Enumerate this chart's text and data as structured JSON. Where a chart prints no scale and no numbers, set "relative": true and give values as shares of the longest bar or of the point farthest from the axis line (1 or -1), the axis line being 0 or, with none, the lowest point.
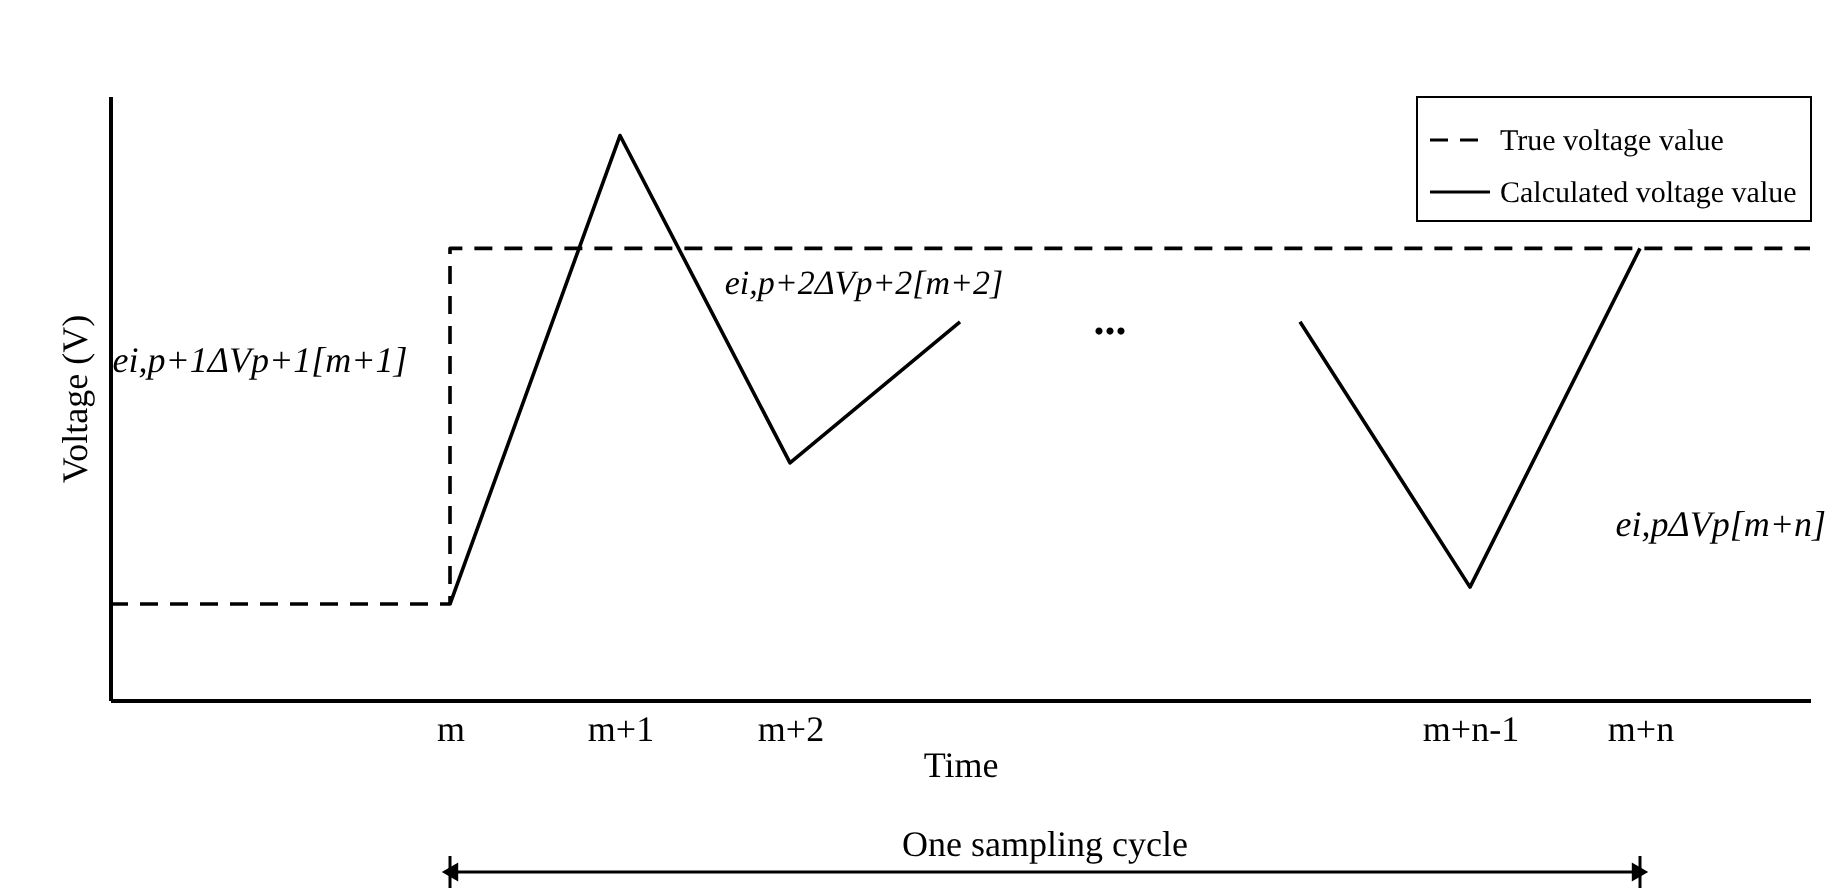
{
  "chart_data": {
    "type": "line",
    "relative": true,
    "xlabel": "Time",
    "ylabel": "Voltage (V)",
    "categories": [
      null,
      null,
      "m",
      "m+1",
      "m+2",
      null,
      null,
      null,
      "m+n-1",
      "m+n",
      null
    ],
    "series": [
      {
        "name": "True voltage value",
        "type": "step",
        "color": "#000000",
        "line_style": "dashed",
        "values": [
          0.17,
          0.17,
          0.8,
          0.8,
          0.8,
          0.8,
          0.8,
          0.8,
          0.8,
          0.8,
          0.8
        ]
      },
      {
        "name": "Calculated voltage value",
        "color": "#000000",
        "line_style": "solid",
        "values": [
          null,
          null,
          0.17,
          1,
          0.42,
          0.67,
          null,
          0.67,
          0.2,
          0.8,
          null
        ]
      }
    ],
    "legend": "top right",
    "grid": false,
    "annotations": [
      "ei,p+1ΔVp+1[m+1]",
      "ei,p+2ΔVp+2[m+2]",
      "...",
      "ei,pΔVp[m+n]",
      "One sampling cycle"
    ]
  }
}
